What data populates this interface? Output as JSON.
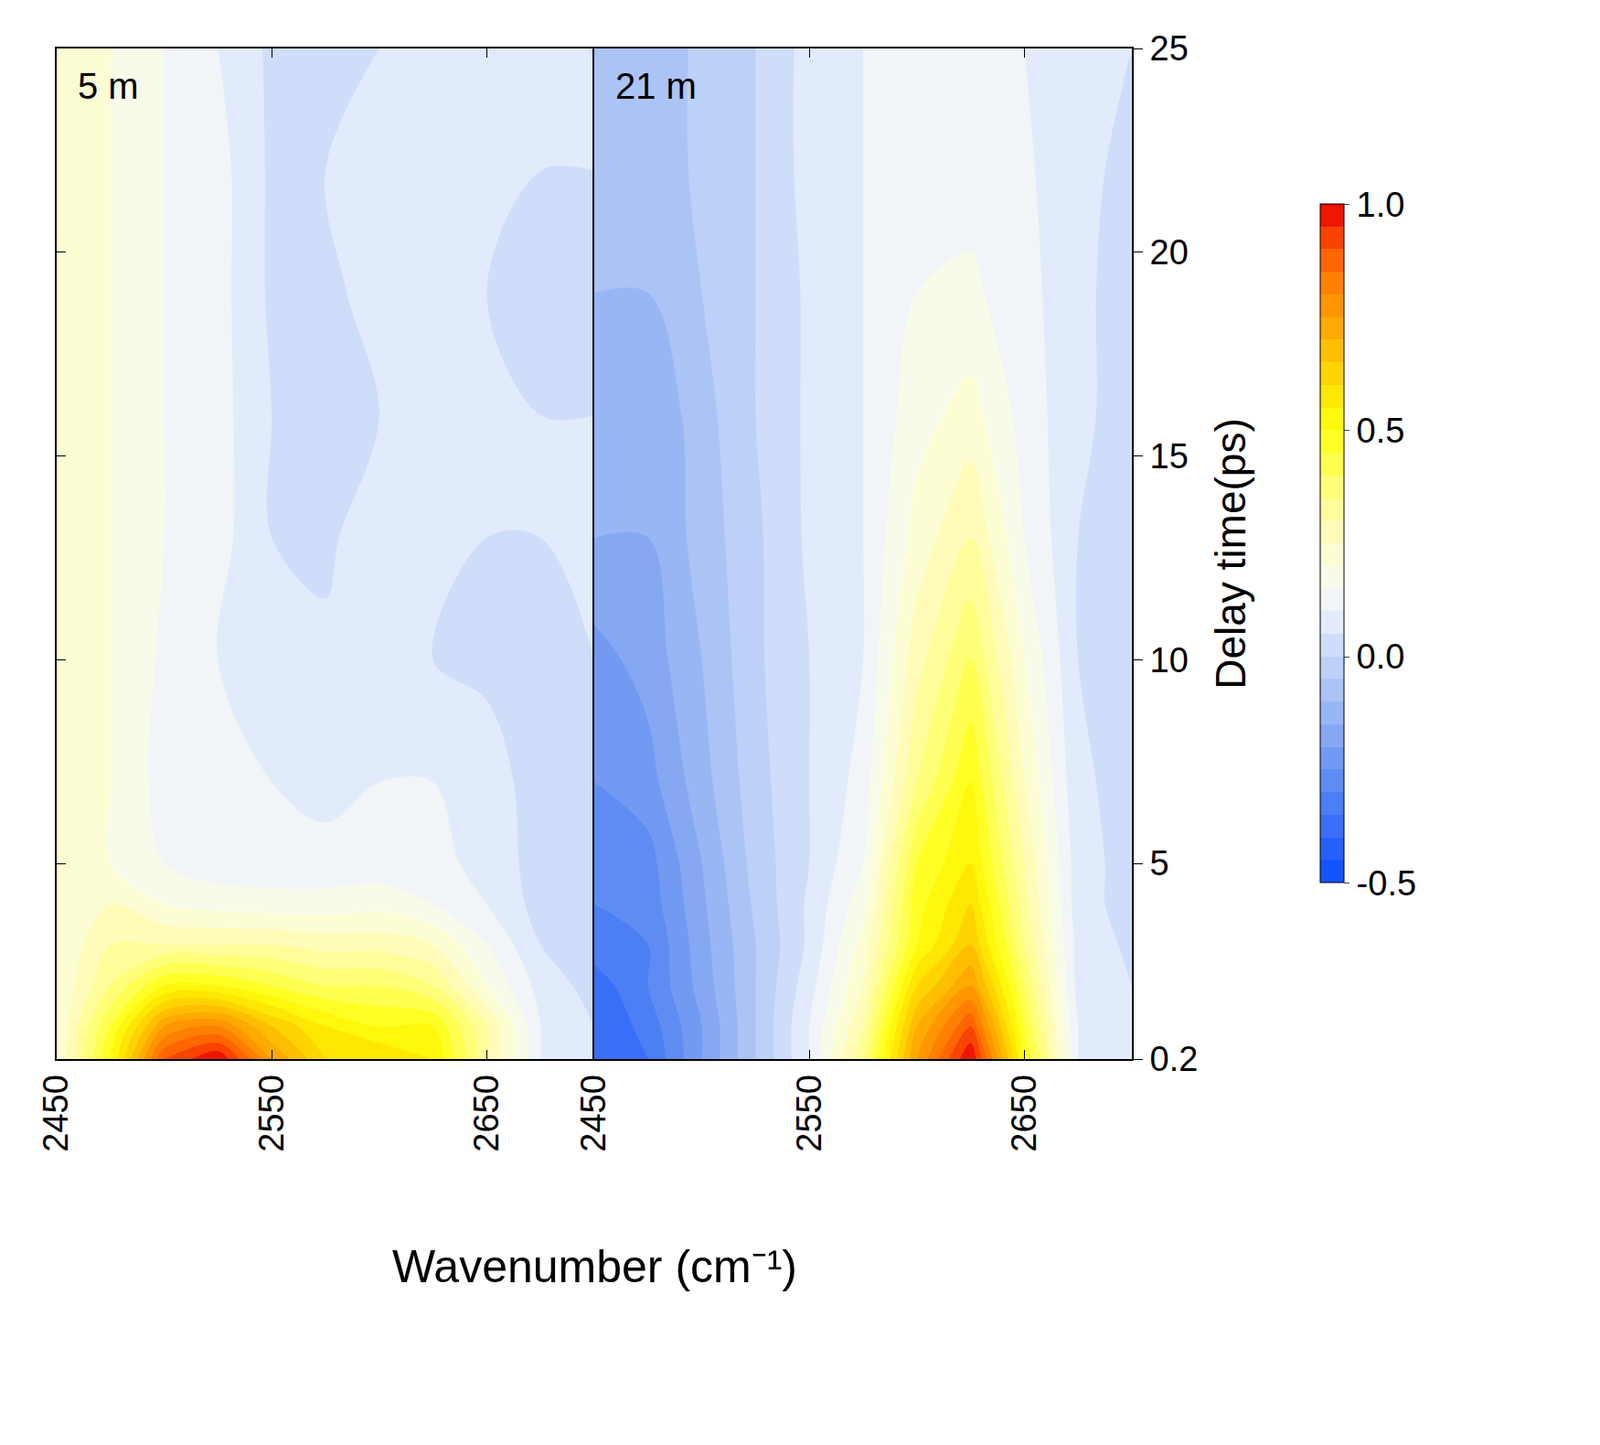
{
  "chart_data": {
    "type": "contour",
    "xlabel": "Wavenumber (cm⁻¹)",
    "ylabel": "Delay time(ps)",
    "x": [
      2450,
      2475,
      2500,
      2525,
      2550,
      2575,
      2600,
      2625,
      2650,
      2675,
      2700
    ],
    "y": [
      0.2,
      1,
      2,
      3,
      4,
      5,
      7,
      10,
      13,
      16,
      19,
      22,
      25
    ],
    "xlim": [
      2450,
      2700
    ],
    "ylim": [
      0.2,
      25
    ],
    "xticks": [
      2450,
      2550,
      2650
    ],
    "yticks": [
      0.2,
      5,
      10,
      15,
      20,
      25
    ],
    "zlim": [
      -0.5,
      1
    ],
    "zticks": [
      -0.5,
      {
        "value": 0,
        "label": "0.0"
      },
      0.5,
      {
        "value": 1,
        "label": "1.0"
      }
    ],
    "series": [
      {
        "name": "5 m",
        "z": [
          [
            0.2,
            0.5,
            0.9,
            1.0,
            0.75,
            0.6,
            0.6,
            0.55,
            0.3,
            0.1,
            0.05
          ],
          [
            0.2,
            0.45,
            0.75,
            0.8,
            0.65,
            0.55,
            0.5,
            0.5,
            0.3,
            0.1,
            0.05
          ],
          [
            0.2,
            0.35,
            0.5,
            0.5,
            0.45,
            0.4,
            0.4,
            0.35,
            0.2,
            0.08,
            0.03
          ],
          [
            0.2,
            0.3,
            0.3,
            0.3,
            0.3,
            0.28,
            0.28,
            0.25,
            0.15,
            0.05,
            0.02
          ],
          [
            0.2,
            0.25,
            0.2,
            0.18,
            0.17,
            0.17,
            0.18,
            0.15,
            0.1,
            0.03,
            0.02
          ],
          [
            0.2,
            0.2,
            0.15,
            0.12,
            0.12,
            0.12,
            0.12,
            0.12,
            0.08,
            0.03,
            0.02
          ],
          [
            0.22,
            0.2,
            0.13,
            0.1,
            0.1,
            0.08,
            0.1,
            0.1,
            0.07,
            0.03,
            0.02
          ],
          [
            0.22,
            0.2,
            0.14,
            0.1,
            0.08,
            0.06,
            0.07,
            0.05,
            0.04,
            0.04,
            0.05
          ],
          [
            0.22,
            0.2,
            0.15,
            0.12,
            0.05,
            0.04,
            0.08,
            0.06,
            0.05,
            0.05,
            0.05
          ],
          [
            0.22,
            0.2,
            0.15,
            0.12,
            0.05,
            0.03,
            0.05,
            0.07,
            0.05,
            0.05,
            0.05
          ],
          [
            0.22,
            0.2,
            0.15,
            0.12,
            0.04,
            0.03,
            0.08,
            0.06,
            0.05,
            0.03,
            0.03
          ],
          [
            0.22,
            0.2,
            0.15,
            0.12,
            0.04,
            0.05,
            0.08,
            0.06,
            0.05,
            0.05,
            0.05
          ],
          [
            0.22,
            0.2,
            0.15,
            0.1,
            0.04,
            0.04,
            0.05,
            0.05,
            0.05,
            0.05,
            0.05
          ]
        ]
      },
      {
        "name": "21 m",
        "z": [
          [
            -0.4,
            -0.35,
            -0.2,
            -0.05,
            0.1,
            0.35,
            0.75,
            1.0,
            0.5,
            0.1,
            0.05
          ],
          [
            -0.4,
            -0.33,
            -0.2,
            -0.05,
            0.1,
            0.3,
            0.7,
            0.9,
            0.45,
            0.1,
            0.05
          ],
          [
            -0.38,
            -0.3,
            -0.18,
            -0.05,
            0.08,
            0.25,
            0.6,
            0.75,
            0.4,
            0.08,
            0.05
          ],
          [
            -0.32,
            -0.3,
            -0.17,
            -0.05,
            0.06,
            0.22,
            0.5,
            0.65,
            0.35,
            0.08,
            0.04
          ],
          [
            -0.3,
            -0.28,
            -0.16,
            -0.04,
            0.06,
            0.18,
            0.48,
            0.6,
            0.32,
            0.07,
            0.03
          ],
          [
            -0.3,
            -0.27,
            -0.15,
            -0.03,
            0.05,
            0.15,
            0.45,
            0.55,
            0.3,
            0.07,
            0.03
          ],
          [
            -0.25,
            -0.22,
            -0.12,
            -0.02,
            0.05,
            0.12,
            0.35,
            0.5,
            0.25,
            0.06,
            0.03
          ],
          [
            -0.22,
            -0.18,
            -0.1,
            -0.01,
            0.05,
            0.1,
            0.28,
            0.4,
            0.2,
            0.05,
            0.02
          ],
          [
            -0.15,
            -0.15,
            -0.08,
            -0.01,
            0.06,
            0.1,
            0.22,
            0.3,
            0.15,
            0.05,
            0.02
          ],
          [
            -0.15,
            -0.15,
            -0.07,
            0.0,
            0.06,
            0.1,
            0.18,
            0.22,
            0.13,
            0.06,
            0.03
          ],
          [
            -0.1,
            -0.1,
            -0.05,
            0.0,
            0.06,
            0.1,
            0.15,
            0.16,
            0.12,
            0.06,
            0.03
          ],
          [
            -0.08,
            -0.08,
            -0.04,
            0.0,
            0.07,
            0.1,
            0.13,
            0.13,
            0.11,
            0.06,
            0.04
          ],
          [
            -0.08,
            -0.08,
            -0.04,
            0.0,
            0.07,
            0.1,
            0.12,
            0.12,
            0.1,
            0.06,
            0.05
          ]
        ]
      }
    ]
  }
}
